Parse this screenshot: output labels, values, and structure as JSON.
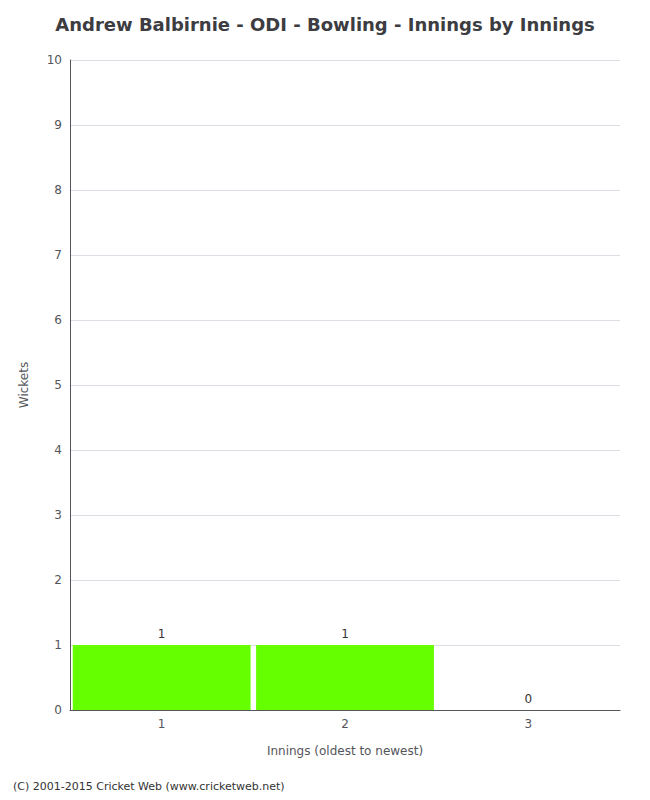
{
  "chart_data": {
    "type": "bar",
    "title": "Andrew Balbirnie - ODI - Bowling - Innings by Innings",
    "x_label": "Innings (oldest to newest)",
    "y_label": "Wickets",
    "categories": [
      "1",
      "2",
      "3"
    ],
    "values": [
      1,
      1,
      0
    ],
    "color": "#66ff00",
    "ylim": [
      0,
      10
    ],
    "yticks": [
      0,
      1,
      2,
      3,
      4,
      5,
      6,
      7,
      8,
      9,
      10
    ],
    "grid": true,
    "data_labels": true,
    "footer": "(C) 2001-2015 Cricket Web (www.cricketweb.net)"
  }
}
